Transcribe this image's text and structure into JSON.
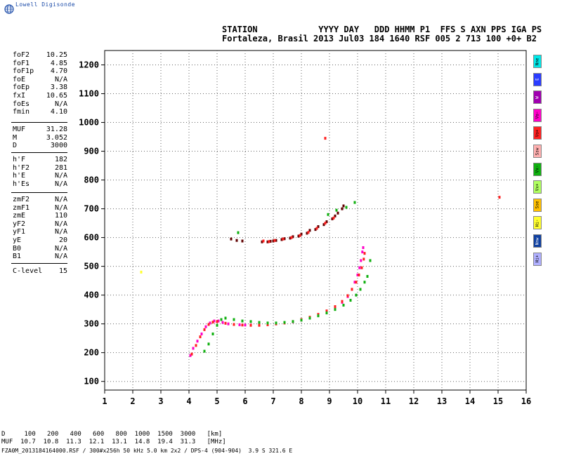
{
  "logo": {
    "text": "Lowell Digisonde"
  },
  "header": {
    "line1": "STATION            YYYY DAY   DDD HHMM P1  FFS S AXN PPS IGA PS",
    "line2": "Fortaleza, Brasil 2013 Jul03 184 1640 RSF 005 2 713 100 +0+ B2"
  },
  "params": {
    "group1": [
      {
        "k": "foF2",
        "v": "10.25"
      },
      {
        "k": "foF1",
        "v": "4.85"
      },
      {
        "k": "foF1p",
        "v": "4.70"
      },
      {
        "k": "foE",
        "v": "N/A"
      },
      {
        "k": "foEp",
        "v": "3.38"
      },
      {
        "k": "fxI",
        "v": "10.65"
      },
      {
        "k": "foEs",
        "v": "N/A"
      },
      {
        "k": "fmin",
        "v": "4.10"
      }
    ],
    "group2": [
      {
        "k": "MUF",
        "v": "31.28"
      },
      {
        "k": "M",
        "v": "3.052"
      },
      {
        "k": "D",
        "v": "3000"
      }
    ],
    "group3": [
      {
        "k": "h'F",
        "v": "182"
      },
      {
        "k": "h'F2",
        "v": "281"
      },
      {
        "k": "h'E",
        "v": "N/A"
      },
      {
        "k": "h'Es",
        "v": "N/A"
      }
    ],
    "group4": [
      {
        "k": "zmF2",
        "v": "N/A"
      },
      {
        "k": "zmF1",
        "v": "N/A"
      },
      {
        "k": "zmE",
        "v": "110"
      },
      {
        "k": "yF2",
        "v": "N/A"
      },
      {
        "k": "yF1",
        "v": "N/A"
      },
      {
        "k": "yE",
        "v": "20"
      },
      {
        "k": "B0",
        "v": "N/A"
      },
      {
        "k": "B1",
        "v": "N/A"
      }
    ],
    "clevel": {
      "k": "C-level",
      "v": "15"
    }
  },
  "legend": [
    {
      "label": "Nne",
      "color": "#00e8e8"
    },
    {
      "label": "E",
      "color": "#2a3cff"
    },
    {
      "label": "W",
      "color": "#a000b0"
    },
    {
      "label": "Vo-",
      "color": "#ff00c8"
    },
    {
      "label": "Vo+",
      "color": "#ff2020"
    },
    {
      "label": "Ssw",
      "color": "#ffb0b0"
    },
    {
      "label": "Vx-",
      "color": "#10b010"
    },
    {
      "label": "Vx+",
      "color": "#b0ff60"
    },
    {
      "label": "Sse",
      "color": "#ffc000"
    },
    {
      "label": "Hi-",
      "color": "#ffff30"
    },
    {
      "label": "Nnw",
      "color": "#1040a0"
    },
    {
      "label": "Hi+",
      "color": "#b0b0ff"
    }
  ],
  "footer": {
    "line1": "D     100   200   400   600   800  1000  1500  3000   [km]",
    "line2": "MUF  10.7  10.8  11.3  12.1  13.1  14.8  19.4  31.3   [MHz]",
    "line3": "FZA0M_2013184164000.RSF / 300#x256h 50 kHz 5.0 km 2x2 / DPS-4 (904-904)  3.9 S 321.6 E"
  },
  "chart_data": {
    "type": "scatter",
    "x_ticks": [
      "1",
      "2",
      "3",
      "4",
      "5",
      "6",
      "7",
      "8",
      "9",
      "10",
      "11",
      "12",
      "13",
      "14",
      "15",
      "16"
    ],
    "y_ticks": [
      "100",
      "200",
      "300",
      "400",
      "500",
      "600",
      "700",
      "800",
      "900",
      "1000",
      "1100",
      "1200"
    ],
    "xlim": [
      1,
      16
    ],
    "ylim": [
      70,
      1250
    ],
    "grid": true,
    "series": [
      {
        "color": "#ff00c8",
        "points": [
          [
            4.05,
            190
          ],
          [
            4.15,
            215
          ],
          [
            4.3,
            240
          ],
          [
            4.45,
            265
          ],
          [
            4.6,
            290
          ],
          [
            4.75,
            303
          ],
          [
            4.9,
            310
          ],
          [
            5.05,
            310
          ],
          [
            5.2,
            305
          ],
          [
            5.4,
            300
          ],
          [
            5.6,
            298
          ],
          [
            5.8,
            297
          ],
          [
            6.0,
            296
          ],
          [
            6.2,
            296
          ],
          [
            6.5,
            296
          ],
          [
            6.8,
            298
          ],
          [
            7.1,
            300
          ],
          [
            7.4,
            303
          ],
          [
            7.7,
            307
          ],
          [
            8.0,
            313
          ],
          [
            8.3,
            320
          ],
          [
            8.6,
            330
          ],
          [
            8.9,
            342
          ],
          [
            9.2,
            357
          ],
          [
            9.45,
            375
          ],
          [
            9.65,
            395
          ],
          [
            9.8,
            420
          ],
          [
            9.9,
            445
          ],
          [
            10.0,
            470
          ],
          [
            10.07,
            495
          ],
          [
            10.12,
            520
          ],
          [
            10.17,
            550
          ],
          [
            10.2,
            565
          ]
        ]
      },
      {
        "color": "#ff2020",
        "points": [
          [
            4.1,
            195
          ],
          [
            4.25,
            225
          ],
          [
            4.4,
            255
          ],
          [
            4.55,
            280
          ],
          [
            4.7,
            298
          ],
          [
            4.85,
            306
          ],
          [
            5.0,
            308
          ],
          [
            5.3,
            302
          ],
          [
            5.6,
            298
          ],
          [
            5.9,
            296
          ],
          [
            6.2,
            295
          ],
          [
            6.5,
            295
          ],
          [
            6.8,
            297
          ],
          [
            7.1,
            300
          ],
          [
            7.4,
            303
          ],
          [
            7.7,
            308
          ],
          [
            8.0,
            315
          ],
          [
            8.3,
            323
          ],
          [
            8.6,
            333
          ],
          [
            8.9,
            345
          ],
          [
            9.2,
            360
          ],
          [
            9.45,
            378
          ],
          [
            9.65,
            398
          ],
          [
            9.8,
            420
          ],
          [
            9.95,
            445
          ],
          [
            10.05,
            470
          ],
          [
            10.15,
            495
          ],
          [
            10.22,
            525
          ],
          [
            10.25,
            545
          ]
        ]
      },
      {
        "color": "#10b010",
        "points": [
          [
            4.55,
            205
          ],
          [
            4.7,
            230
          ],
          [
            4.85,
            265
          ],
          [
            5.0,
            295
          ],
          [
            5.15,
            315
          ],
          [
            5.3,
            320
          ],
          [
            5.6,
            315
          ],
          [
            5.9,
            310
          ],
          [
            6.2,
            308
          ],
          [
            6.5,
            305
          ],
          [
            6.8,
            303
          ],
          [
            7.1,
            303
          ],
          [
            7.4,
            305
          ],
          [
            7.7,
            308
          ],
          [
            8.0,
            313
          ],
          [
            8.3,
            320
          ],
          [
            8.6,
            328
          ],
          [
            8.9,
            338
          ],
          [
            9.2,
            350
          ],
          [
            9.5,
            365
          ],
          [
            9.75,
            382
          ],
          [
            9.95,
            400
          ],
          [
            10.1,
            420
          ],
          [
            10.25,
            445
          ],
          [
            10.35,
            465
          ],
          [
            10.45,
            520
          ]
        ]
      },
      {
        "color": "#600000",
        "points": [
          [
            5.5,
            595
          ],
          [
            5.7,
            590
          ],
          [
            5.9,
            588
          ],
          [
            6.6,
            585
          ],
          [
            6.8,
            585
          ],
          [
            7.0,
            588
          ],
          [
            7.3,
            593
          ],
          [
            7.6,
            598
          ],
          [
            7.9,
            605
          ],
          [
            8.2,
            615
          ],
          [
            8.5,
            628
          ],
          [
            8.8,
            645
          ],
          [
            9.1,
            665
          ],
          [
            9.3,
            685
          ],
          [
            9.5,
            710
          ],
          [
            9.45,
            700
          ],
          [
            9.2,
            675
          ],
          [
            8.9,
            655
          ],
          [
            8.6,
            638
          ],
          [
            8.3,
            625
          ],
          [
            8.0,
            612
          ],
          [
            7.7,
            603
          ],
          [
            7.4,
            596
          ],
          [
            7.1,
            590
          ],
          [
            6.9,
            587
          ]
        ]
      },
      {
        "color": "#ff2020",
        "points": [
          [
            6.65,
            588
          ],
          [
            6.85,
            586
          ],
          [
            7.05,
            590
          ],
          [
            7.35,
            595
          ],
          [
            7.65,
            600
          ],
          [
            7.95,
            607
          ],
          [
            8.25,
            618
          ],
          [
            8.55,
            632
          ],
          [
            8.85,
            650
          ],
          [
            9.15,
            668
          ]
        ]
      },
      {
        "color": "#10b010",
        "points": [
          [
            8.95,
            680
          ],
          [
            9.25,
            695
          ],
          [
            9.6,
            705
          ],
          [
            9.9,
            722
          ],
          [
            5.75,
            617
          ]
        ]
      },
      {
        "color": "#ff2020",
        "points": [
          [
            8.85,
            945
          ],
          [
            15.05,
            740
          ]
        ]
      },
      {
        "color": "#ffff30",
        "points": [
          [
            2.3,
            480
          ]
        ]
      }
    ]
  }
}
